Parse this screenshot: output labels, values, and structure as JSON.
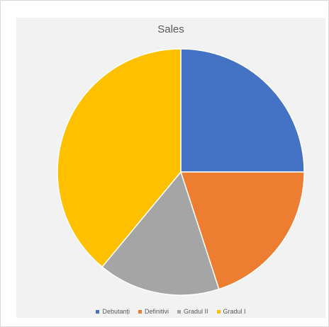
{
  "chart_data": {
    "type": "pie",
    "title": "Sales",
    "categories": [
      "Debutanți",
      "Definitivi",
      "Gradul II",
      "Gradul I"
    ],
    "values": [
      25,
      20,
      16,
      39
    ],
    "colors": [
      "#4472c4",
      "#ed7d31",
      "#a5a5a5",
      "#ffc000"
    ],
    "legend_position": "bottom"
  }
}
